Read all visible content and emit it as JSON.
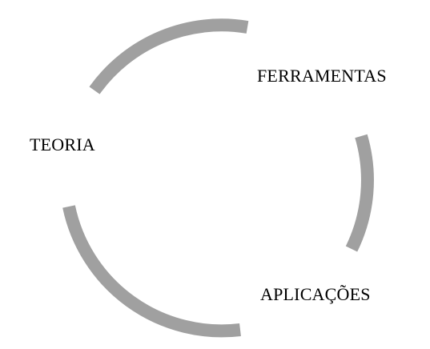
{
  "diagram": {
    "type": "cycle",
    "arc_color": "#a0a0a0",
    "text_color": "#000000",
    "nodes": [
      {
        "id": "ferramentas",
        "label": "FERRAMENTAS"
      },
      {
        "id": "teoria",
        "label": "TEORIA"
      },
      {
        "id": "aplicacoes",
        "label": "APLICAÇÕES"
      }
    ]
  }
}
